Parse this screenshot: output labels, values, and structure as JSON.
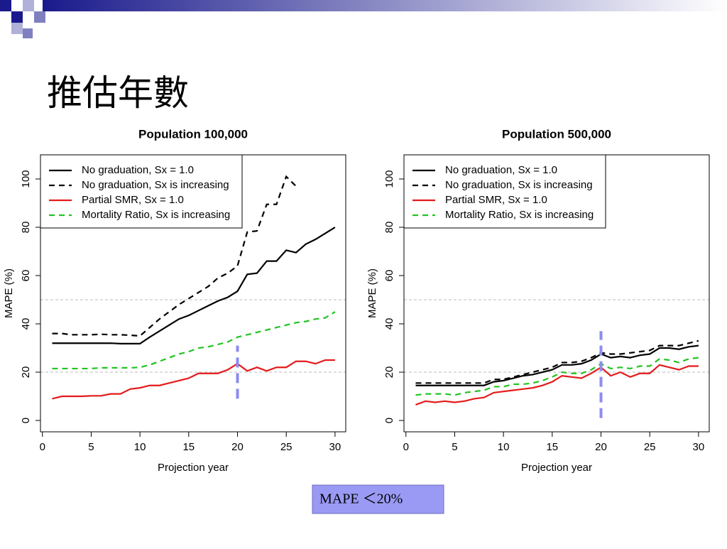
{
  "slide": {
    "title": "推估年數",
    "note": "MAPE ＜20%"
  },
  "chart_data": [
    {
      "type": "line",
      "title": "Population 100,000",
      "xlabel": "Projection year",
      "ylabel": "MAPE (%)",
      "x": [
        1,
        2,
        3,
        4,
        5,
        6,
        7,
        8,
        9,
        10,
        11,
        12,
        13,
        14,
        15,
        16,
        17,
        18,
        19,
        20,
        21,
        22,
        23,
        24,
        25,
        26,
        27,
        28,
        29,
        30
      ],
      "xlim": [
        -0.2,
        31.1
      ],
      "xticks": [
        0,
        5,
        10,
        15,
        20,
        25,
        30
      ],
      "ylim": [
        -4.7,
        110
      ],
      "yticks": [
        0,
        20,
        40,
        60,
        80,
        100
      ],
      "hlines": [
        20,
        50
      ],
      "marker": {
        "x": 20,
        "yrange": [
          9,
          31
        ],
        "color": "#8c8cf0"
      },
      "legend": "top-left",
      "series": [
        {
          "name": "No graduation, Sx = 1.0",
          "color": "#000000",
          "dash": false,
          "values": [
            32,
            32,
            32,
            32,
            32,
            32,
            32,
            31.8,
            31.8,
            31.8,
            34.5,
            37,
            39.5,
            42,
            43.5,
            45.5,
            47.5,
            49.5,
            51,
            53.5,
            60.5,
            61,
            66,
            66,
            70.5,
            69.5,
            73,
            75,
            77.5,
            80
          ]
        },
        {
          "name": "No graduation, Sx is increasing",
          "color": "#000000",
          "dash": true,
          "values": [
            36,
            36,
            35.5,
            35.5,
            35.5,
            35.7,
            35.5,
            35.5,
            35.3,
            35,
            38.5,
            42,
            45,
            48,
            50.5,
            53,
            55.5,
            59,
            61,
            64,
            78,
            78.5,
            89.5,
            89.5,
            101,
            97,
            null,
            null,
            null,
            null
          ]
        },
        {
          "name": "Partial SMR, Sx = 1.0",
          "color": "#e41a1c",
          "dash": false,
          "values": [
            9,
            10,
            10,
            10,
            10.2,
            10.2,
            11,
            11,
            13,
            13.5,
            14.5,
            14.5,
            15.5,
            16.5,
            17.5,
            19.5,
            19.5,
            19.5,
            21,
            23.5,
            20.5,
            22,
            20.5,
            22,
            22,
            24.5,
            24.5,
            23.5,
            25,
            25
          ]
        },
        {
          "name": "Mortality Ratio, Sx is increasing",
          "color": "#22c422",
          "dash": true,
          "values": [
            21.5,
            21.5,
            21.5,
            21.5,
            21.5,
            21.8,
            21.8,
            21.8,
            21.8,
            22,
            23,
            24.5,
            26,
            27.5,
            28.5,
            30,
            30.5,
            31.5,
            32.5,
            34.5,
            35.5,
            36.5,
            37.5,
            38.5,
            39.5,
            40.5,
            41,
            42,
            42.5,
            45
          ]
        }
      ]
    },
    {
      "type": "line",
      "title": "Population 500,000",
      "xlabel": "Projection year",
      "ylabel": "MAPE (%)",
      "x": [
        1,
        2,
        3,
        4,
        5,
        6,
        7,
        8,
        9,
        10,
        11,
        12,
        13,
        14,
        15,
        16,
        17,
        18,
        19,
        20,
        21,
        22,
        23,
        24,
        25,
        26,
        27,
        28,
        29,
        30
      ],
      "xlim": [
        -0.2,
        31.1
      ],
      "xticks": [
        0,
        5,
        10,
        15,
        20,
        25,
        30
      ],
      "ylim": [
        -4.7,
        110
      ],
      "yticks": [
        0,
        20,
        40,
        60,
        80,
        100
      ],
      "hlines": [
        20,
        50
      ],
      "marker": {
        "x": 20,
        "yrange": [
          1,
          37
        ],
        "color": "#8c8cf0"
      },
      "legend": "top-left",
      "series": [
        {
          "name": "No graduation, Sx = 1.0",
          "color": "#000000",
          "dash": false,
          "values": [
            14.5,
            14.5,
            14.5,
            14.5,
            14.5,
            14.5,
            14.5,
            14.5,
            16,
            16.5,
            17.5,
            18.5,
            19,
            20,
            21,
            23,
            23,
            23.5,
            25,
            27.5,
            26,
            26.5,
            26,
            27,
            27.5,
            30,
            30,
            29.5,
            30.5,
            31
          ]
        },
        {
          "name": "No graduation, Sx is increasing",
          "color": "#000000",
          "dash": true,
          "values": [
            15.5,
            15.5,
            15.5,
            15.5,
            15.5,
            15.5,
            15.5,
            15.5,
            17,
            17,
            18,
            19,
            20,
            21,
            22,
            24,
            24,
            24.5,
            26,
            28,
            27.5,
            27.5,
            28,
            28.5,
            29,
            31,
            31,
            31,
            32,
            33
          ]
        },
        {
          "name": "Partial SMR, Sx = 1.0",
          "color": "#e41a1c",
          "dash": false,
          "values": [
            6.5,
            8,
            7.5,
            8,
            7.5,
            8,
            9,
            9.5,
            11.5,
            12,
            12.5,
            13,
            13.5,
            14.5,
            16,
            18.5,
            18,
            17.5,
            19.5,
            22,
            18.5,
            20,
            18,
            19.5,
            19.5,
            23,
            22,
            21,
            22.5,
            22.5
          ]
        },
        {
          "name": "Mortality Ratio, Sx is increasing",
          "color": "#22c422",
          "dash": true,
          "values": [
            10.5,
            11,
            11,
            11,
            10.5,
            11.5,
            12,
            12.5,
            14,
            14,
            15,
            15,
            15.5,
            16.5,
            18,
            20,
            19.5,
            19.5,
            21,
            23.5,
            21.5,
            22,
            21.5,
            22.5,
            22.5,
            25.5,
            25,
            24,
            25.5,
            26
          ]
        }
      ]
    }
  ]
}
